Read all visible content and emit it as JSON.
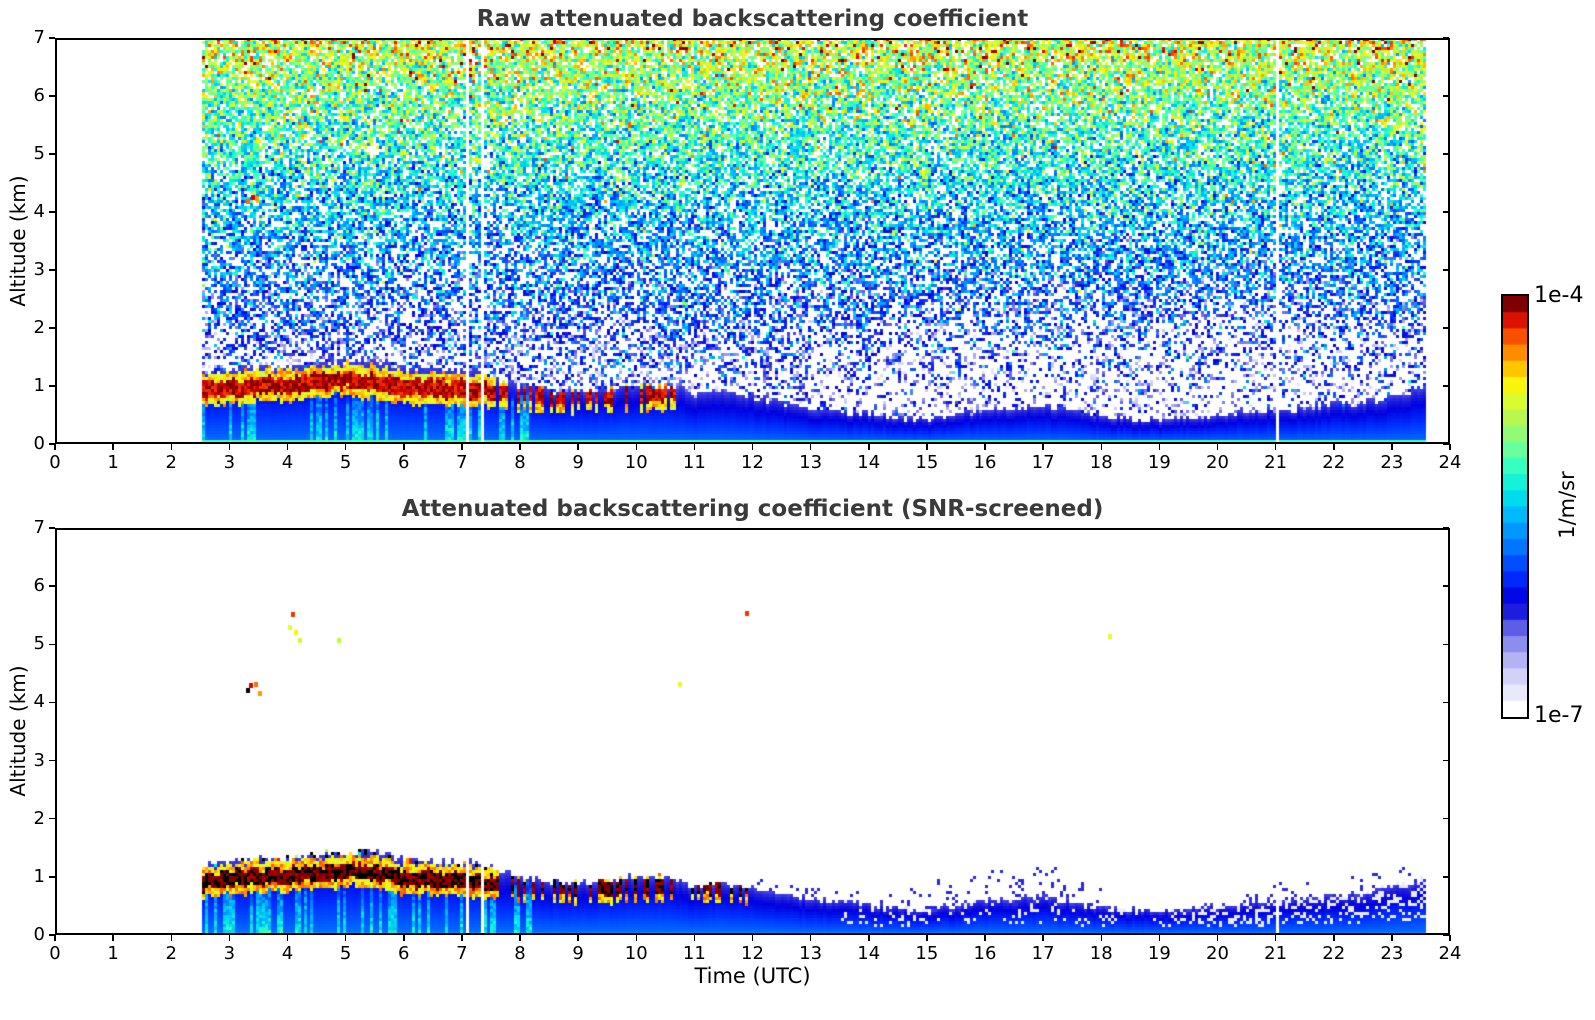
{
  "figure": {
    "background": "#ffffff",
    "title_color": "#3a3a3a",
    "axis_color": "#000000"
  },
  "panels": [
    {
      "id": "raw",
      "title": "Raw attenuated backscattering coefficient"
    },
    {
      "id": "screened",
      "title": "Attenuated backscattering coefficient (SNR-screened)"
    }
  ],
  "axes": {
    "x": {
      "label": "Time (UTC)",
      "min": 0,
      "max": 24,
      "tick_labels": [
        "0",
        "1",
        "2",
        "3",
        "4",
        "5",
        "6",
        "7",
        "8",
        "9",
        "10",
        "11",
        "12",
        "13",
        "14",
        "15",
        "16",
        "17",
        "18",
        "19",
        "20",
        "21",
        "22",
        "23",
        "24"
      ]
    },
    "y": {
      "label": "Altitude (km)",
      "min": 0,
      "max": 7,
      "tick_labels": [
        "0",
        "1",
        "2",
        "3",
        "4",
        "5",
        "6",
        "7"
      ]
    }
  },
  "colorbar": {
    "max_label": "1e-4",
    "min_label": "1e-7",
    "unit_label": "1/m/sr"
  },
  "chart_data": {
    "type": "heatmap",
    "seed": 7,
    "x_axis": {
      "label": "Time (UTC)",
      "min": 0,
      "max": 24,
      "units": "hours UTC"
    },
    "y_axis": {
      "label": "Altitude (km)",
      "min": 0,
      "max": 7,
      "units": "km"
    },
    "color_scale": {
      "min": 1e-07,
      "max": 0.0001,
      "units": "1/m/sr",
      "scale": "log10",
      "max_label": "1e-4",
      "min_label": "1e-7"
    },
    "colormap_stops": [
      [
        0.0,
        "#ffffff"
      ],
      [
        0.04,
        "#e9e9fc"
      ],
      [
        0.08,
        "#d2d2f9"
      ],
      [
        0.12,
        "#b3b3f3"
      ],
      [
        0.16,
        "#8d8ded"
      ],
      [
        0.2,
        "#5d5de7"
      ],
      [
        0.24,
        "#1d1ddd"
      ],
      [
        0.27,
        "#0000e0"
      ],
      [
        0.33,
        "#0030ff"
      ],
      [
        0.4,
        "#0076ff"
      ],
      [
        0.47,
        "#00b2ff"
      ],
      [
        0.53,
        "#00e4e8"
      ],
      [
        0.59,
        "#2affc8"
      ],
      [
        0.65,
        "#74ff94"
      ],
      [
        0.71,
        "#b0f556"
      ],
      [
        0.77,
        "#e3fc2a"
      ],
      [
        0.81,
        "#fff200"
      ],
      [
        0.855,
        "#ffb000"
      ],
      [
        0.9,
        "#ff6d00"
      ],
      [
        0.94,
        "#ef3500"
      ],
      [
        0.97,
        "#d20000"
      ],
      [
        1.0,
        "#7f0000"
      ]
    ],
    "coverage": {
      "start_utc": 2.55,
      "end_utc": 23.6,
      "gap_utc": [
        7.12,
        7.33,
        21.05
      ]
    },
    "layer_top_km_profile": [
      [
        2.55,
        1.22
      ],
      [
        3.0,
        1.28
      ],
      [
        3.5,
        1.32
      ],
      [
        4.0,
        1.33
      ],
      [
        4.5,
        1.38
      ],
      [
        5.0,
        1.42
      ],
      [
        5.3,
        1.45
      ],
      [
        5.6,
        1.42
      ],
      [
        6.0,
        1.32
      ],
      [
        6.5,
        1.28
      ],
      [
        7.0,
        1.24
      ],
      [
        7.3,
        1.28
      ],
      [
        7.6,
        1.12
      ],
      [
        8.0,
        1.02
      ],
      [
        8.5,
        0.92
      ],
      [
        9.0,
        0.9
      ],
      [
        9.5,
        0.95
      ],
      [
        10.0,
        1.0
      ],
      [
        10.5,
        1.02
      ],
      [
        10.8,
        0.95
      ],
      [
        11.0,
        0.82
      ],
      [
        11.5,
        0.9
      ],
      [
        12.0,
        0.82
      ],
      [
        12.5,
        0.72
      ],
      [
        13.0,
        0.62
      ],
      [
        13.5,
        0.58
      ],
      [
        14.0,
        0.52
      ],
      [
        14.5,
        0.48
      ],
      [
        15.0,
        0.42
      ],
      [
        15.5,
        0.5
      ],
      [
        16.0,
        0.6
      ],
      [
        16.5,
        0.62
      ],
      [
        17.0,
        0.65
      ],
      [
        17.3,
        0.6
      ],
      [
        17.8,
        0.5
      ],
      [
        18.2,
        0.45
      ],
      [
        19.0,
        0.42
      ],
      [
        19.5,
        0.45
      ],
      [
        20.0,
        0.5
      ],
      [
        20.5,
        0.55
      ],
      [
        21.0,
        0.6
      ],
      [
        21.5,
        0.62
      ],
      [
        22.0,
        0.68
      ],
      [
        22.5,
        0.72
      ],
      [
        23.0,
        0.82
      ],
      [
        23.3,
        0.9
      ],
      [
        23.6,
        0.98
      ]
    ],
    "aerosol": {
      "deep_log10": -6.35,
      "body_log10": -5.8,
      "streak_log10": -5.3,
      "streak_fraction": 0.3,
      "streak_end_utc": 8.2,
      "ground_log10": -5.15,
      "ground_km": 0.05
    },
    "spike_palette": [
      "#ffff00",
      "#ff9900",
      "#e81600",
      "#000000",
      "#00e8e8",
      "#b8ff2e"
    ],
    "panels": [
      {
        "name": "raw",
        "title": "Raw attenuated backscattering coefficient",
        "noise": {
          "top_log10": -4.78,
          "lapse_per_km": 0.27,
          "jitter": 0.85,
          "hot_fraction": 0.06,
          "hot_boost": 0.45,
          "white_base": 0.16,
          "white_low_extra": 0.5,
          "afternoon_white_extra": 0.12
        },
        "surface_band": {
          "start_utc": 2.55,
          "solid_until_utc": 7.55,
          "intermittent_until_utc": 10.7,
          "intermittent_fraction": 0.45,
          "half_width_km": 0.14,
          "peak_log10": -4.08,
          "fringe_log10": -4.55,
          "center_km_profile": [
            [
              2.55,
              0.92
            ],
            [
              3.0,
              0.96
            ],
            [
              3.5,
              1.0
            ],
            [
              4.0,
              1.02
            ],
            [
              4.5,
              1.06
            ],
            [
              5.0,
              1.1
            ],
            [
              5.5,
              1.06
            ],
            [
              6.0,
              0.97
            ],
            [
              6.5,
              0.95
            ],
            [
              7.0,
              0.95
            ],
            [
              7.55,
              0.9
            ],
            [
              8.5,
              0.82
            ],
            [
              10.7,
              0.85
            ]
          ]
        },
        "specks": [
          {
            "t": 3.32,
            "alt": 4.18,
            "color": "#ff6d00"
          },
          {
            "t": 3.4,
            "alt": 4.25,
            "color": "#d20000"
          },
          {
            "t": 3.48,
            "alt": 4.22,
            "color": "#ff9900"
          }
        ]
      },
      {
        "name": "screened",
        "title": "Attenuated backscattering coefficient (SNR-screened)",
        "band_black_fraction": 0.42,
        "spike_fraction": 0.5,
        "surface_band": {
          "start_utc": 2.55,
          "solid_until_utc": 7.6,
          "intermittent_until_utc": 12.0,
          "intermittent_fraction": 0.4,
          "half_width_km": 0.13,
          "peak_log10": -4.05,
          "fringe_log10": -4.5,
          "center_km_profile": [
            [
              2.55,
              0.92
            ],
            [
              3.0,
              0.96
            ],
            [
              3.5,
              1.0
            ],
            [
              4.0,
              1.02
            ],
            [
              4.5,
              1.06
            ],
            [
              5.0,
              1.1
            ],
            [
              5.5,
              1.06
            ],
            [
              6.0,
              0.97
            ],
            [
              6.5,
              0.95
            ],
            [
              7.0,
              0.95
            ],
            [
              7.55,
              0.9
            ],
            [
              8.5,
              0.82
            ],
            [
              12.0,
              0.82
            ]
          ]
        },
        "late_mottle": {
          "start_utc": 13.5,
          "fraction_mid": 0.13,
          "strong_start_utc": 19.5,
          "fraction_late": 0.3,
          "log10": -6.88
        },
        "flecks": [
          {
            "start_utc": 12.0,
            "end_utc": 14.5,
            "above_km": 0.22,
            "fraction": 0.2
          },
          {
            "start_utc": 14.5,
            "end_utc": 18.0,
            "above_km": 0.5,
            "fraction": 0.3
          },
          {
            "start_utc": 20.5,
            "end_utc": 23.6,
            "above_km": 0.28,
            "fraction": 0.25
          }
        ],
        "specks": [
          {
            "t": 3.32,
            "alt": 4.2,
            "color": "#000000"
          },
          {
            "t": 3.38,
            "alt": 4.28,
            "color": "#d20000"
          },
          {
            "t": 3.46,
            "alt": 4.3,
            "color": "#ff6d00"
          },
          {
            "t": 3.52,
            "alt": 4.15,
            "color": "#ff9900"
          },
          {
            "t": 4.05,
            "alt": 5.28,
            "color": "#e3fc2a"
          },
          {
            "t": 4.1,
            "alt": 5.5,
            "color": "#ef3500"
          },
          {
            "t": 4.15,
            "alt": 5.2,
            "color": "#fff200"
          },
          {
            "t": 4.22,
            "alt": 5.05,
            "color": "#d8f53c"
          },
          {
            "t": 4.88,
            "alt": 5.05,
            "color": "#b8ff2e"
          },
          {
            "t": 10.75,
            "alt": 4.3,
            "color": "#e3fc2a"
          },
          {
            "t": 11.9,
            "alt": 5.52,
            "color": "#ef3500"
          },
          {
            "t": 18.15,
            "alt": 5.12,
            "color": "#e3fc2a"
          }
        ]
      }
    ]
  }
}
